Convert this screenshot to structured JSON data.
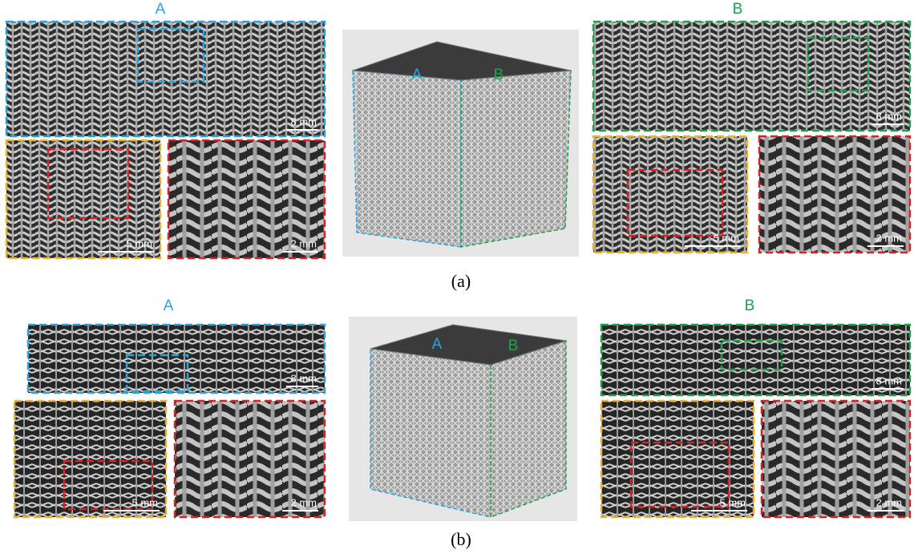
{
  "panels": [
    {
      "caption": "(a)",
      "left": {
        "label": "A",
        "scale_bars": [
          "8 mm",
          "5 mm",
          "2 mm"
        ]
      },
      "cube": {
        "labels": [
          "A",
          "B"
        ]
      },
      "right": {
        "label": "B",
        "scale_bars": [
          "8 mm",
          "5 mm",
          "2 mm"
        ]
      }
    },
    {
      "caption": "(b)",
      "left": {
        "label": "A",
        "scale_bars": [
          "8 mm",
          "5 mm",
          "2 mm"
        ]
      },
      "cube": {
        "labels": [
          "A",
          "B"
        ]
      },
      "right": {
        "label": "B",
        "scale_bars": [
          "8 mm",
          "5 mm",
          "2 mm"
        ]
      }
    }
  ]
}
